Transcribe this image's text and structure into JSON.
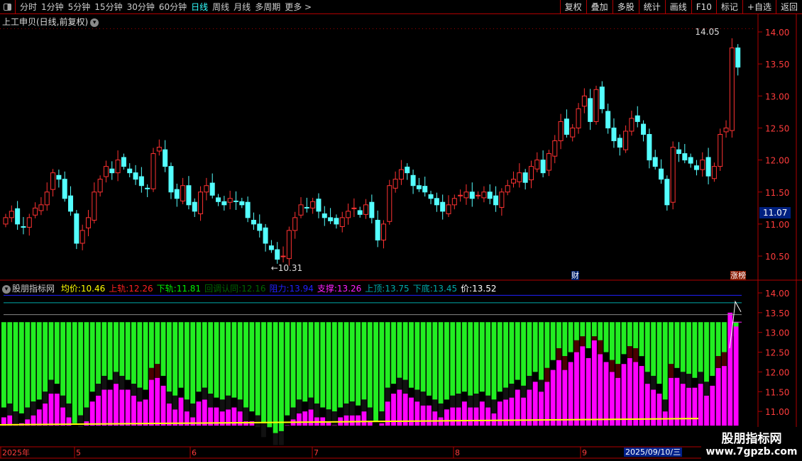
{
  "toolbar": {
    "periods": [
      "分时",
      "1分钟",
      "5分钟",
      "15分钟",
      "30分钟",
      "60分钟",
      "日线",
      "周线",
      "月线",
      "多周期",
      "更多 >"
    ],
    "active": "日线",
    "buttons": [
      "复权",
      "叠加",
      "多股",
      "统计",
      "画线",
      "F10",
      "标记",
      "+自选",
      "返回"
    ]
  },
  "main": {
    "title": "上工申贝(日线,前复权)",
    "high_label": "14.05",
    "low_label": "10.31",
    "current_price": "11.07",
    "price_ticks": [
      "14.00",
      "13.50",
      "13.00",
      "12.50",
      "12.00",
      "11.50",
      "11.00",
      "10.50"
    ],
    "markers": {
      "cai": "财",
      "zhangbang": "涨榜"
    }
  },
  "indicator": {
    "name": "股朋指标网",
    "values": [
      {
        "label": "均价:",
        "value": "10.46",
        "color": "#ffff00"
      },
      {
        "label": "上轨:",
        "value": "12.26",
        "color": "#ff2020"
      },
      {
        "label": "下轨:",
        "value": "11.81",
        "color": "#00ee00"
      },
      {
        "label": "回调认同:",
        "value": "12.16",
        "color": "#006600"
      },
      {
        "label": "阻力:",
        "value": "13.94",
        "color": "#2020ff"
      },
      {
        "label": "支撑:",
        "value": "13.26",
        "color": "#ff20ff"
      },
      {
        "label": "上顶:",
        "value": "13.75",
        "color": "#00aaaa"
      },
      {
        "label": "下底:",
        "value": "13.45",
        "color": "#00aaaa"
      },
      {
        "label": "价:",
        "value": "13.52",
        "color": "#ffffff"
      }
    ],
    "ticks": [
      "14.00",
      "13.50",
      "13.00",
      "12.50",
      "12.00",
      "11.50",
      "11.00"
    ]
  },
  "date_axis": {
    "labels": [
      "2025年",
      "5",
      "6",
      "7",
      "8",
      "9"
    ],
    "cursor_date": "2025/09/10/三"
  },
  "watermark": {
    "name": "股朋指标网",
    "url": "www.7gpzb.com"
  },
  "colors": {
    "up": "#ff3232",
    "down": "#54ffff",
    "border": "#b00000"
  },
  "chart_data": {
    "type": "candlestick",
    "closes": [
      11.1,
      11.2,
      11.0,
      10.95,
      11.1,
      11.25,
      11.3,
      11.5,
      11.8,
      11.7,
      11.4,
      11.2,
      10.7,
      10.9,
      11.1,
      11.5,
      11.7,
      11.9,
      11.8,
      12.0,
      11.9,
      11.8,
      11.7,
      11.6,
      11.55,
      12.1,
      12.2,
      11.9,
      11.5,
      11.4,
      11.6,
      11.3,
      11.2,
      11.5,
      11.6,
      11.45,
      11.35,
      11.3,
      11.4,
      11.35,
      11.3,
      11.1,
      11.0,
      10.9,
      10.7,
      10.6,
      10.45,
      10.5,
      10.9,
      11.1,
      11.3,
      11.25,
      11.35,
      11.2,
      11.1,
      11.05,
      11.0,
      11.1,
      11.2,
      11.25,
      11.15,
      11.3,
      11.1,
      10.75,
      11.0,
      11.6,
      11.7,
      11.85,
      11.8,
      11.6,
      11.55,
      11.5,
      11.4,
      11.3,
      11.2,
      11.3,
      11.4,
      11.45,
      11.5,
      11.4,
      11.45,
      11.5,
      11.4,
      11.3,
      11.5,
      11.6,
      11.7,
      11.8,
      11.65,
      11.9,
      12.0,
      11.8,
      12.1,
      12.3,
      12.6,
      12.4,
      12.5,
      12.8,
      13.0,
      12.6,
      13.1,
      12.8,
      12.5,
      12.3,
      12.2,
      12.45,
      12.65,
      12.6,
      12.4,
      12.0,
      11.9,
      11.7,
      11.3,
      12.2,
      12.1,
      12.0,
      11.95,
      11.85,
      12.0,
      11.75,
      11.9,
      12.4,
      12.5,
      13.75,
      13.45
    ],
    "ylim": [
      10.3,
      14.1
    ]
  }
}
